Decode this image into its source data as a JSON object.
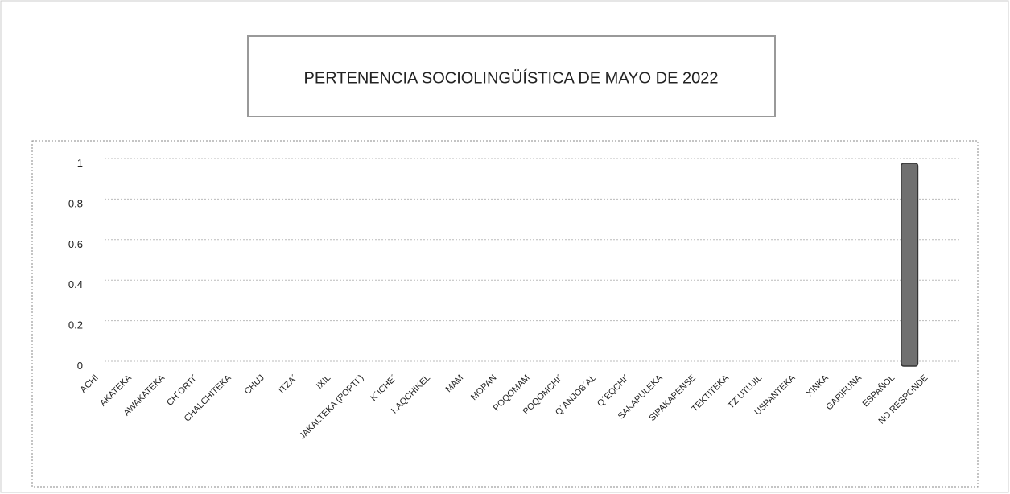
{
  "chart_data": {
    "type": "bar",
    "title": "PERTENENCIA SOCIOLINGÜÍSTICA DE MAYO DE 2022",
    "categories": [
      "ACHI",
      "AKATEKA",
      "AWAKATEKA",
      "CH´ORTI´",
      "CHALCHITEKA",
      "CHUJ",
      "ITZA´",
      "IXIL",
      "JAKALTEKA (POPTI´)",
      "K´ICHE´",
      "KAQCHIKEL",
      "MAM",
      "MOPAN",
      "POQOMAM",
      "POQOMCHI´",
      "Q´ANJOB´AL",
      "Q´EQCHI´",
      "SAKAPULEKA",
      "SIPAKAPENSE",
      "TEKTITEKA",
      "TZ´UTUJIL",
      "USPANTEKA",
      "XINKA",
      "GARÍFUNA",
      "ESPAÑOL",
      "NO RESPONDE"
    ],
    "values": [
      0,
      0,
      0,
      0,
      0,
      0,
      0,
      0,
      0,
      0,
      0,
      0,
      0,
      0,
      0,
      0,
      0,
      0,
      0,
      0,
      0,
      0,
      0,
      0,
      1,
      0
    ],
    "color": "#707070",
    "ylim": [
      0,
      1
    ],
    "yticks": [
      0,
      0.2,
      0.4,
      0.6,
      0.8,
      1
    ],
    "grid": true
  }
}
